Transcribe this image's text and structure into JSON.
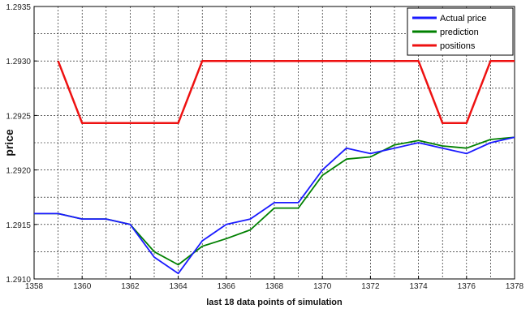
{
  "chart_data": {
    "type": "line",
    "title": "",
    "xlabel": "last 18 data points of simulation",
    "ylabel": "price",
    "xlim": [
      1358,
      1378
    ],
    "ylim": [
      1.291,
      1.2935
    ],
    "x_ticks": [
      "1358",
      "1360",
      "1362",
      "1364",
      "1366",
      "1368",
      "1370",
      "1372",
      "1374",
      "1376",
      "1378"
    ],
    "y_ticks": [
      "1.2910",
      "1.2915",
      "1.2920",
      "1.2925",
      "1.2930",
      "1.2935"
    ],
    "grid": true,
    "legend_position": "top-right",
    "series": [
      {
        "name": "Actual price",
        "color": "#1a1aff",
        "x": [
          1358,
          1359,
          1360,
          1361,
          1362,
          1363,
          1364,
          1365,
          1366,
          1367,
          1368,
          1369,
          1370,
          1371,
          1372,
          1373,
          1374,
          1375,
          1376,
          1377,
          1378
        ],
        "y": [
          1.2916,
          1.2916,
          1.29155,
          1.29155,
          1.2915,
          1.2912,
          1.29105,
          1.29135,
          1.2915,
          1.29155,
          1.2917,
          1.2917,
          1.292,
          1.2922,
          1.29215,
          1.2922,
          1.29225,
          1.2922,
          1.29215,
          1.29225,
          1.2923
        ]
      },
      {
        "name": "prediction",
        "color": "#008000",
        "x": [
          1358,
          1359,
          1360,
          1361,
          1362,
          1363,
          1364,
          1365,
          1366,
          1367,
          1368,
          1369,
          1370,
          1371,
          1372,
          1373,
          1374,
          1375,
          1376,
          1377,
          1378
        ],
        "y": [
          1.2916,
          1.2916,
          1.29155,
          1.29155,
          1.2915,
          1.29125,
          1.29113,
          1.2913,
          1.29137,
          1.29145,
          1.29165,
          1.29165,
          1.29195,
          1.2921,
          1.29212,
          1.29223,
          1.29227,
          1.29222,
          1.2922,
          1.29228,
          1.2923
        ]
      },
      {
        "name": "positions",
        "color": "#ee1111",
        "x": [
          1359,
          1360,
          1361,
          1362,
          1363,
          1364,
          1365,
          1366,
          1367,
          1368,
          1369,
          1370,
          1371,
          1372,
          1373,
          1374,
          1375,
          1376,
          1377,
          1378
        ],
        "y": [
          1.293,
          1.29243,
          1.29243,
          1.29243,
          1.29243,
          1.29243,
          1.293,
          1.293,
          1.293,
          1.293,
          1.293,
          1.293,
          1.293,
          1.293,
          1.293,
          1.293,
          1.29243,
          1.29243,
          1.293,
          1.293
        ]
      }
    ]
  }
}
